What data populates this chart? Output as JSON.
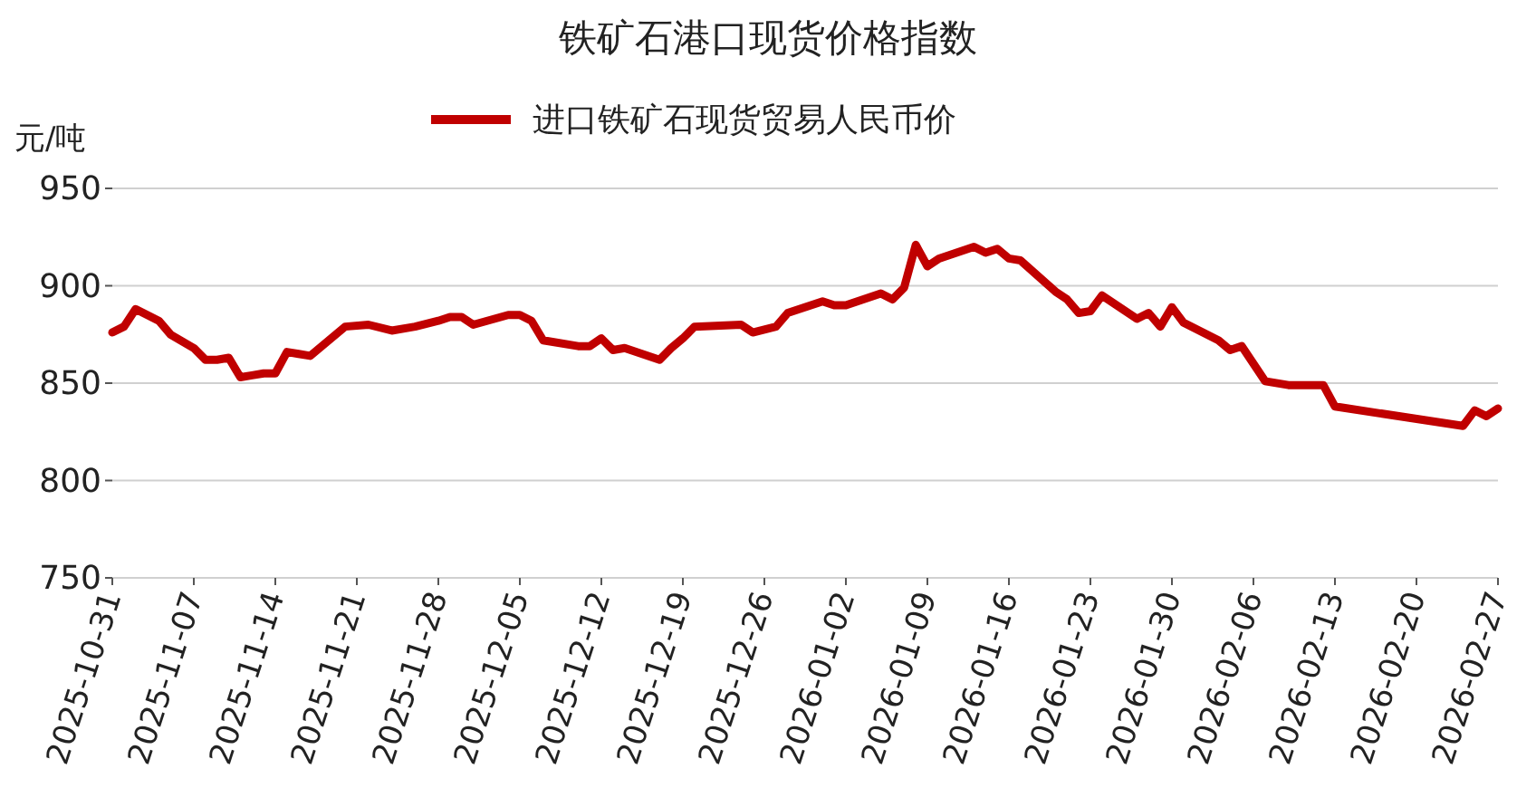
{
  "chart_data": {
    "type": "line",
    "title": "铁矿石港口现货价格指数",
    "ylabel": "元/吨",
    "x": [
      "2025-10-31",
      "2025-11-01",
      "2025-11-02",
      "2025-11-04",
      "2025-11-05",
      "2025-11-07",
      "2025-11-08",
      "2025-11-09",
      "2025-11-10",
      "2025-11-11",
      "2025-11-12",
      "2025-11-13",
      "2025-11-14",
      "2025-11-15",
      "2025-11-16",
      "2025-11-17",
      "2025-11-20",
      "2025-11-22",
      "2025-11-24",
      "2025-11-26",
      "2025-11-28",
      "2025-11-29",
      "2025-11-30",
      "2025-12-01",
      "2025-12-04",
      "2025-12-05",
      "2025-12-06",
      "2025-12-07",
      "2025-12-10",
      "2025-12-11",
      "2025-12-12",
      "2025-12-13",
      "2025-12-14",
      "2025-12-17",
      "2025-12-18",
      "2025-12-19",
      "2025-12-20",
      "2025-12-24",
      "2025-12-25",
      "2025-12-27",
      "2025-12-28",
      "2025-12-31",
      "2026-01-01",
      "2026-01-02",
      "2026-01-05",
      "2026-01-06",
      "2026-01-07",
      "2026-01-08",
      "2026-01-09",
      "2026-01-10",
      "2026-01-13",
      "2026-01-14",
      "2026-01-15",
      "2026-01-16",
      "2026-01-17",
      "2026-01-20",
      "2026-01-21",
      "2026-01-22",
      "2026-01-23",
      "2026-01-24",
      "2026-01-27",
      "2026-01-28",
      "2026-01-29",
      "2026-01-30",
      "2026-01-31",
      "2026-02-03",
      "2026-02-04",
      "2026-02-05",
      "2026-02-07",
      "2026-02-09",
      "2026-02-12",
      "2026-02-13",
      "2026-02-24",
      "2026-02-25",
      "2026-02-26",
      "2026-02-27"
    ],
    "series": [
      {
        "name": "进口铁矿石现货贸易人民币价",
        "color": "#c00000",
        "values": [
          876,
          879,
          888,
          882,
          875,
          868,
          862,
          862,
          863,
          853,
          854,
          855,
          855,
          866,
          865,
          864,
          879,
          880,
          877,
          879,
          882,
          884,
          884,
          880,
          885,
          885,
          882,
          872,
          869,
          869,
          873,
          867,
          868,
          862,
          868,
          873,
          879,
          880,
          876,
          879,
          886,
          892,
          890,
          890,
          896,
          893,
          899,
          921,
          910,
          914,
          920,
          917,
          919,
          914,
          913,
          897,
          893,
          886,
          887,
          895,
          883,
          886,
          879,
          889,
          881,
          872,
          867,
          869,
          851,
          849,
          849,
          838,
          828,
          836,
          833,
          837
        ]
      }
    ],
    "xlim": [
      "2025-10-31",
      "2026-02-27"
    ],
    "xticks": [
      "2025-10-31",
      "2025-11-07",
      "2025-11-14",
      "2025-11-21",
      "2025-11-28",
      "2025-12-05",
      "2025-12-12",
      "2025-12-19",
      "2025-12-26",
      "2026-01-02",
      "2026-01-09",
      "2026-01-16",
      "2026-01-23",
      "2026-01-30",
      "2026-02-06",
      "2026-02-13",
      "2026-02-20",
      "2026-02-27"
    ],
    "ylim": [
      750,
      950
    ],
    "yticks": [
      750,
      800,
      850,
      900,
      950
    ],
    "grid": "y",
    "legend": "top",
    "line_style": "solid"
  }
}
